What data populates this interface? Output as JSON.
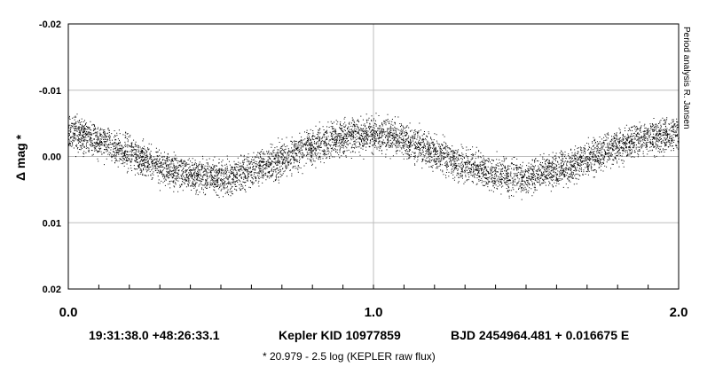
{
  "chart_data": {
    "type": "scatter",
    "title": "",
    "xlabel": "",
    "ylabel": "Δ mag *",
    "xlim": [
      0.0,
      2.0
    ],
    "ylim": [
      -0.02,
      0.02
    ],
    "y_inverted": true,
    "grid": true,
    "x_ticks": [
      0.0,
      1.0,
      2.0
    ],
    "x_tick_labels": [
      "0.0",
      "1.0",
      "2.0"
    ],
    "y_ticks": [
      -0.02,
      -0.01,
      0.0,
      0.01,
      0.02
    ],
    "y_tick_labels": [
      "-0.02",
      "-0.01",
      "0.00",
      "0.01",
      "0.02"
    ],
    "series": [
      {
        "curve_x": [
          0.0,
          0.1,
          0.2,
          0.3,
          0.4,
          0.5,
          0.6,
          0.7,
          0.8,
          0.9,
          1.0,
          1.1,
          1.2,
          1.3,
          1.4,
          1.5,
          1.6,
          1.7,
          1.8,
          1.9,
          2.0
        ],
        "curve_y": [
          -0.0035,
          -0.0025,
          -0.0005,
          0.0015,
          0.0028,
          0.0032,
          0.0022,
          0.0005,
          -0.0015,
          -0.0028,
          -0.0035,
          -0.0025,
          -0.0005,
          0.0015,
          0.0028,
          0.0032,
          0.0022,
          0.0005,
          -0.0015,
          -0.0028,
          -0.0035
        ],
        "scatter_halfwidth": 0.0028,
        "point_count": 14000,
        "color": "#000000"
      }
    ]
  },
  "footer": {
    "coords": "19:31:38.0 +48:26:33.1",
    "object": "Kepler KID 10977859",
    "ephemeris": "BJD 2454964.481 + 0.016675 E"
  },
  "note": "* 20.979 - 2.5 log (KEPLER raw flux)",
  "side_label": "Period analysis  R. Jansen"
}
